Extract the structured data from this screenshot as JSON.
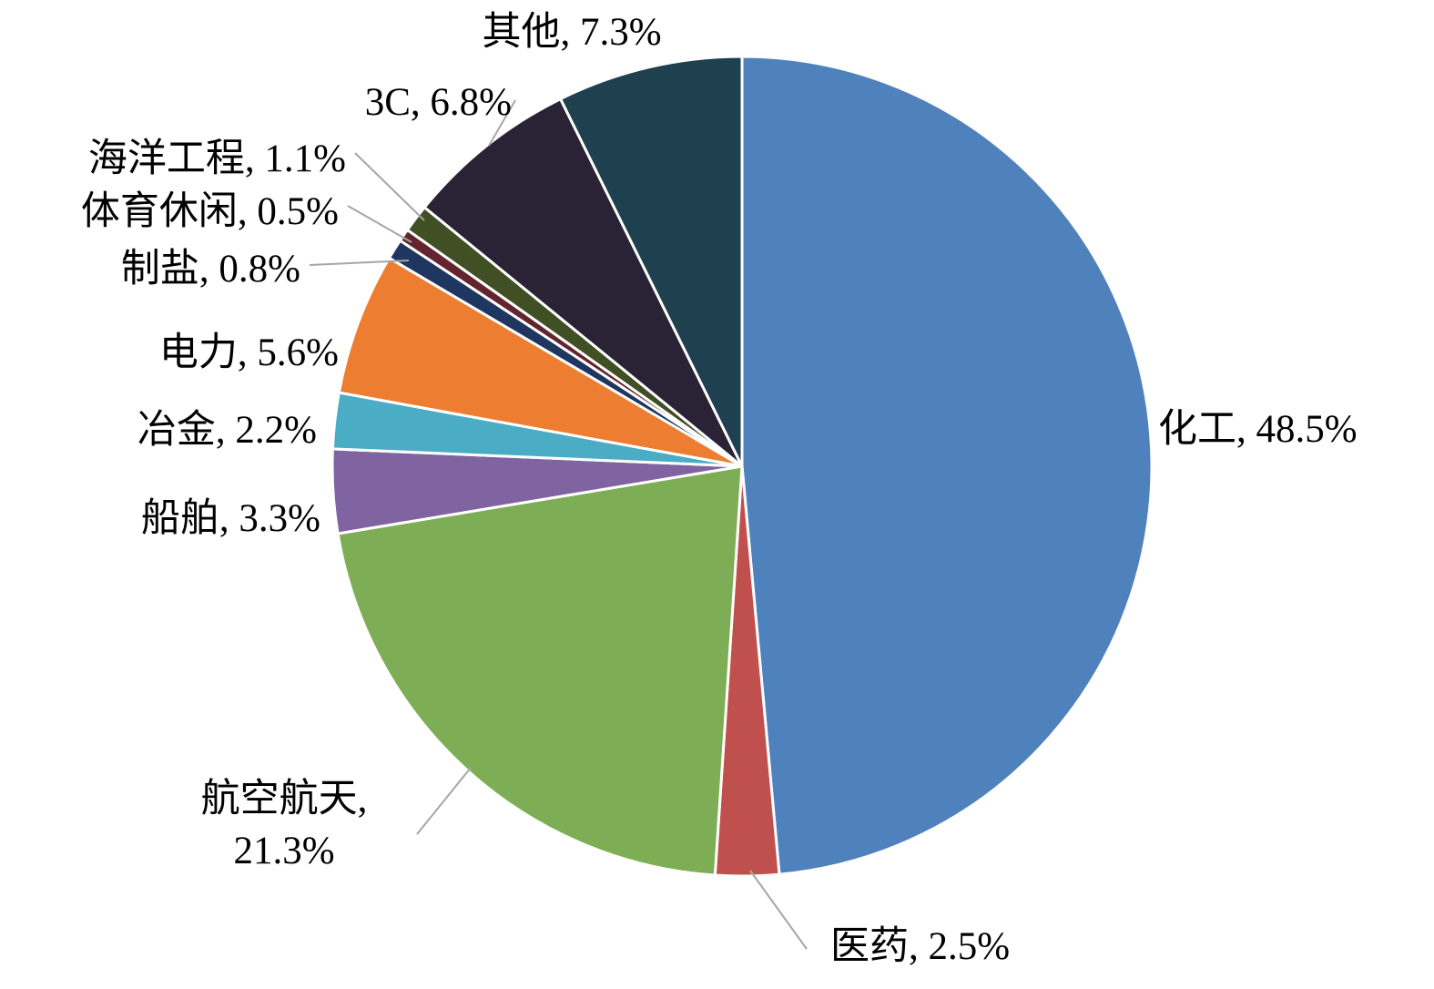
{
  "page": {
    "background_color": "#FFFFFF"
  },
  "chart_data": {
    "type": "pie",
    "title": "",
    "direction": "clockwise",
    "start_angle_deg": 0,
    "legend_position": "none",
    "slice_border_color": "#FFFFFF",
    "leader_line_color": "#A6A6A6",
    "label_format": "{name}, {value}%",
    "series": [
      {
        "name": "化工",
        "value": 48.5,
        "color": "#4F81BD"
      },
      {
        "name": "医药",
        "value": 2.5,
        "color": "#C0504D"
      },
      {
        "name": "航空航天",
        "value": 21.3,
        "color": "#7DAD54"
      },
      {
        "name": "船舶",
        "value": 3.3,
        "color": "#8064A2"
      },
      {
        "name": "冶金",
        "value": 2.2,
        "color": "#4BACC6"
      },
      {
        "name": "电力",
        "value": 5.6,
        "color": "#ED7D31"
      },
      {
        "name": "制盐",
        "value": 0.8,
        "color": "#1F3660"
      },
      {
        "name": "体育休闲",
        "value": 0.5,
        "color": "#64242E"
      },
      {
        "name": "海洋工程",
        "value": 1.1,
        "color": "#414F24"
      },
      {
        "name": "3C",
        "value": 6.8,
        "color": "#2A2235"
      },
      {
        "name": "其他",
        "value": 7.3,
        "color": "#1F404E"
      }
    ]
  }
}
